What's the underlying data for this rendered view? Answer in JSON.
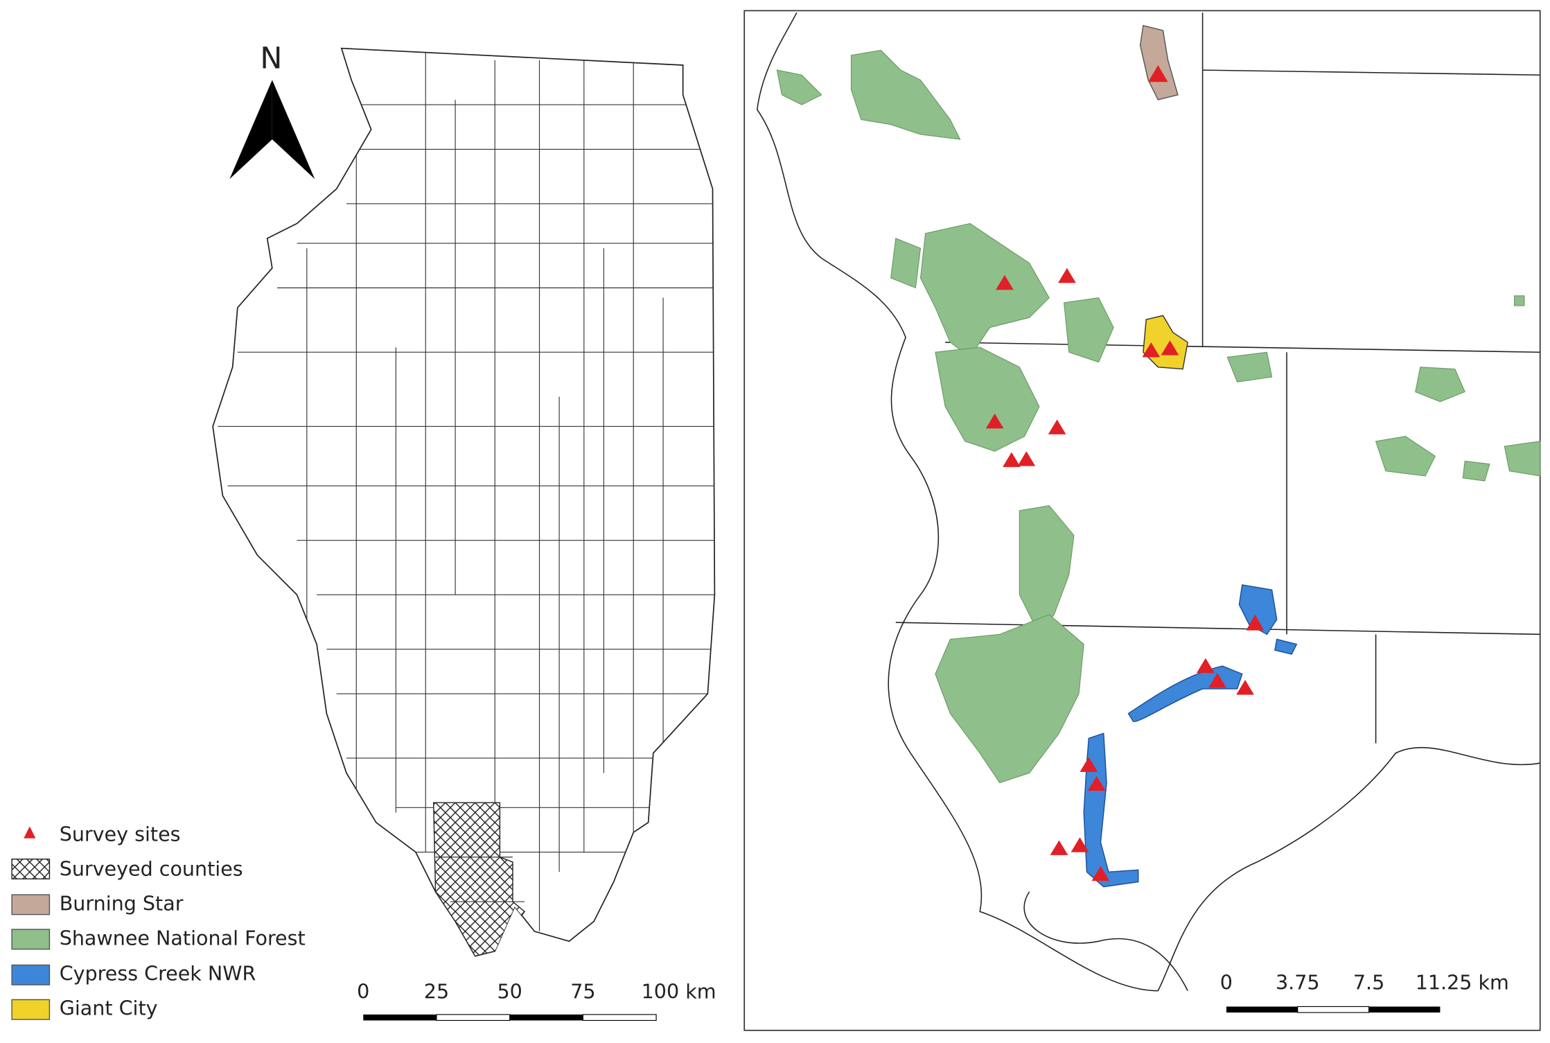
{
  "north_arrow": "N",
  "legend": {
    "items": [
      "Survey sites",
      "Surveyed counties",
      "Burning Star",
      "Shawnee National Forest",
      "Cypress Creek NWR",
      "Giant City"
    ]
  },
  "left_scale_bar": {
    "labels": [
      "0",
      "25",
      "50",
      "75",
      "100 km"
    ]
  },
  "right_scale_bar": {
    "labels": [
      "0",
      "3.75",
      "7.5",
      "11.25 km"
    ]
  }
}
